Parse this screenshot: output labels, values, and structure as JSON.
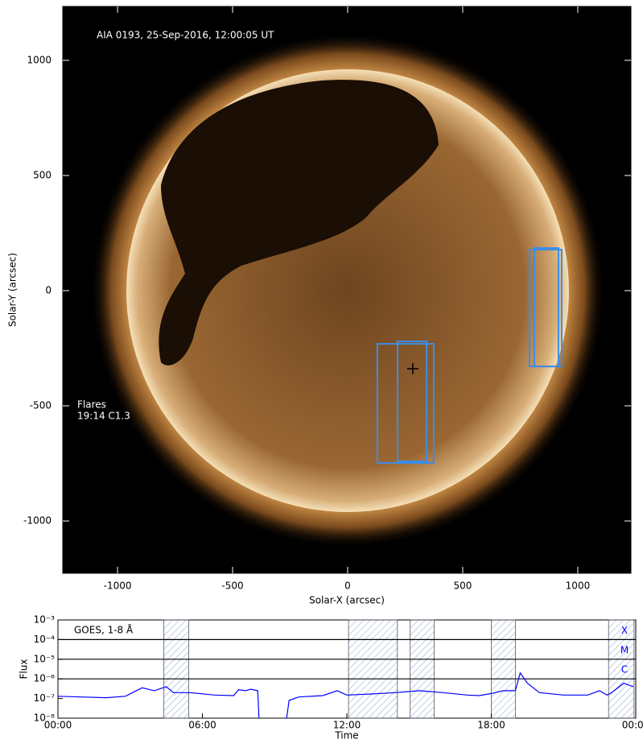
{
  "chart_data": [
    {
      "type": "image",
      "title": "AIA 0193, 25-Sep-2016, 12:00:05 UT",
      "xlabel": "Solar-X (arcsec)",
      "ylabel": "Solar-Y (arcsec)",
      "xlim": [
        -1238,
        1231
      ],
      "ylim": [
        -1227,
        1234
      ],
      "xticks": [
        -1000,
        -500,
        0,
        500,
        1000
      ],
      "yticks": [
        -1000,
        -500,
        0,
        500,
        1000
      ],
      "annotation": [
        "Flares",
        "19:14 C1.3"
      ],
      "box_color": "#3a8ee6",
      "boxes": [
        {
          "x": [
            129,
            374
          ],
          "y": [
            -748,
            -231
          ]
        },
        {
          "x": [
            217,
            343
          ],
          "y": [
            -741,
            -220
          ]
        },
        {
          "x": [
            790,
            930
          ],
          "y": [
            -329,
            178
          ]
        },
        {
          "x": [
            811,
            916
          ],
          "y": [
            -329,
            185
          ]
        }
      ],
      "marker": {
        "x": 283,
        "y": -339
      }
    },
    {
      "type": "line",
      "label": "GOES, 1-8 Å",
      "xlabel": "Time",
      "ylabel": "Flux",
      "log_y": true,
      "xlim": [
        0,
        24
      ],
      "ylim": [
        1e-08,
        0.001
      ],
      "xticks": [
        {
          "value": 0,
          "label": "00:00"
        },
        {
          "value": 6,
          "label": "06:00"
        },
        {
          "value": 12,
          "label": "12:00"
        },
        {
          "value": 18,
          "label": "18:00"
        },
        {
          "value": 24,
          "label": "00:00"
        }
      ],
      "yticks": [
        {
          "value": 1e-08,
          "label": "10⁻⁸"
        },
        {
          "value": 1e-07,
          "label": "10⁻⁷"
        },
        {
          "value": 1e-06,
          "label": "10⁻⁶"
        },
        {
          "value": 1e-05,
          "label": "10⁻⁵"
        },
        {
          "value": 0.0001,
          "label": "10⁻⁴"
        },
        {
          "value": 0.001,
          "label": "10⁻³"
        }
      ],
      "flare_classes": [
        {
          "label": "X",
          "value": 0.0001
        },
        {
          "label": "M",
          "value": 1e-05
        },
        {
          "label": "C",
          "value": 1e-06
        }
      ],
      "shaded_intervals": [
        [
          4.4,
          5.43
        ],
        [
          12.07,
          14.1
        ],
        [
          14.63,
          15.63
        ],
        [
          18.0,
          19.0
        ],
        [
          22.87,
          23.93
        ]
      ],
      "color": "#0000ff",
      "x": [
        0,
        1,
        2,
        2.8,
        3.5,
        4.0,
        4.5,
        4.8,
        5.5,
        6.5,
        7.3,
        7.5,
        7.8,
        8.0,
        8.3,
        8.35,
        9.0,
        9.5,
        9.6,
        10,
        11,
        11.6,
        12,
        13,
        14,
        15,
        16,
        17,
        17.5,
        18,
        18.5,
        19.0,
        19.2,
        19.5,
        20,
        21,
        22,
        22.5,
        22.8,
        23.0,
        23.5,
        23.9
      ],
      "values": [
        1.3e-07,
        1.2e-07,
        1.1e-07,
        1.3e-07,
        3.5e-07,
        2.5e-07,
        4e-07,
        2e-07,
        2e-07,
        1.5e-07,
        1.4e-07,
        2.8e-07,
        2.5e-07,
        3e-07,
        2.5e-07,
        1e-08,
        null,
        1e-08,
        8e-08,
        1.2e-07,
        1.4e-07,
        2.5e-07,
        1.5e-07,
        1.7e-07,
        2e-07,
        2.5e-07,
        2e-07,
        1.5e-07,
        1.4e-07,
        1.8e-07,
        2.5e-07,
        2.5e-07,
        2e-06,
        6e-07,
        2e-07,
        1.5e-07,
        1.5e-07,
        2.5e-07,
        1.5e-07,
        2e-07,
        6e-07,
        4e-07
      ]
    }
  ]
}
